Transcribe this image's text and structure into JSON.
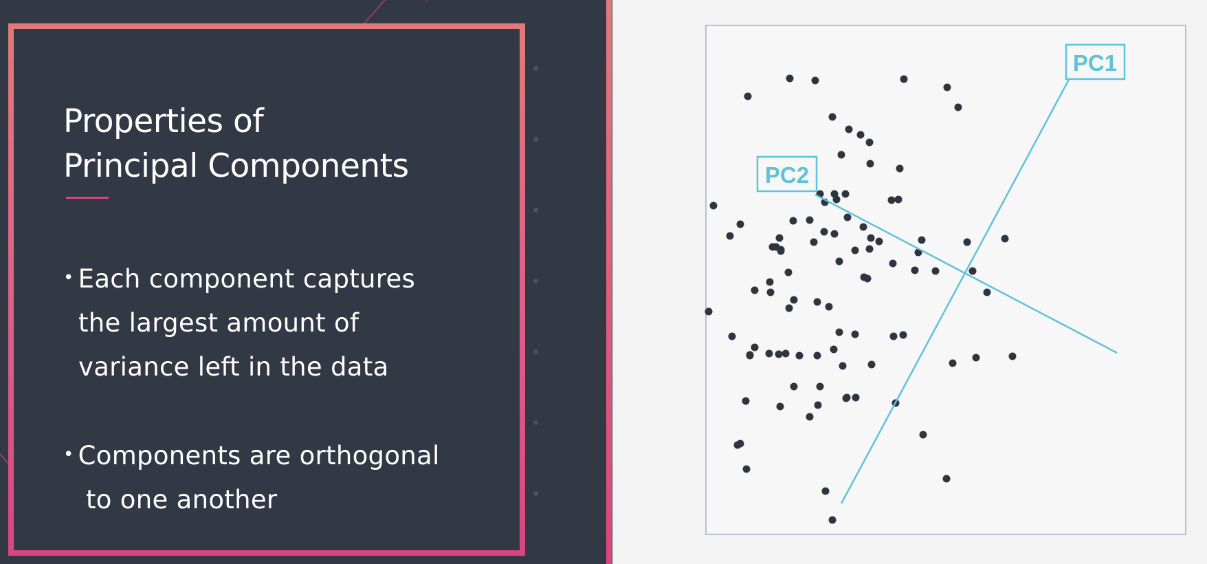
{
  "slide": {
    "title_lines": [
      "Properties of",
      "Principal Components"
    ],
    "bullets": [
      {
        "lines": [
          "Each component captures",
          "the largest amount of",
          "variance left in the data"
        ]
      },
      {
        "lines": [
          "Components are orthogonal",
          "to one another"
        ]
      }
    ]
  },
  "diagram": {
    "labels": {
      "pc1": "PC1",
      "pc2": "PC2"
    },
    "colors": {
      "axis": "#5ec3d6",
      "point": "#2f3540",
      "frame": "#b9bfd0"
    }
  }
}
